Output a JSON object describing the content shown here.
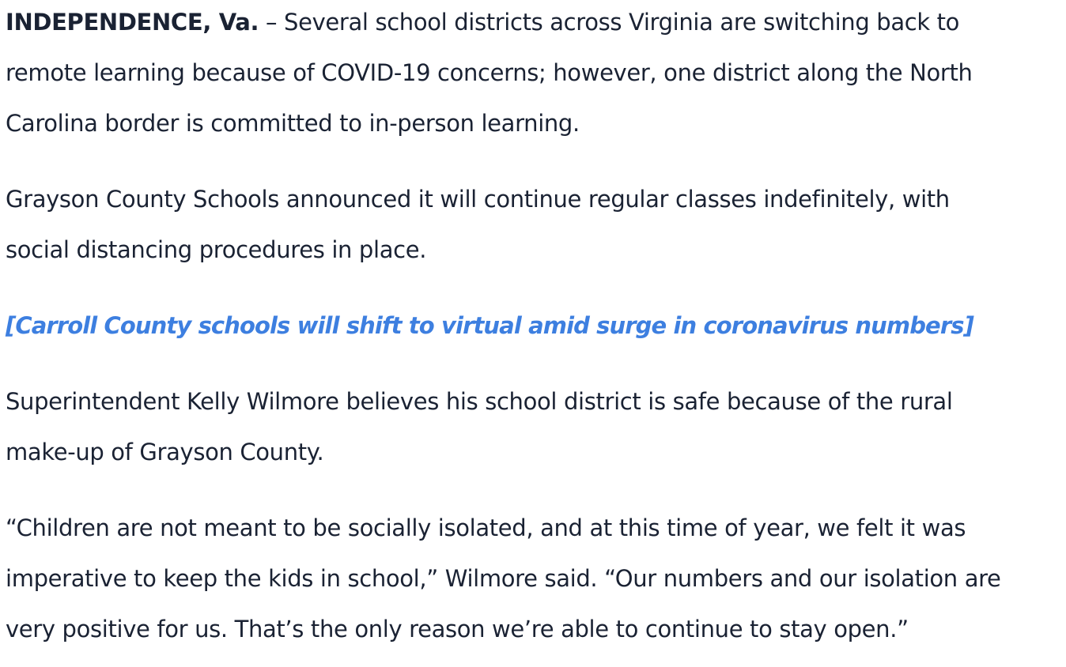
{
  "article": {
    "p1": {
      "dateline": "INDEPENDENCE, Va.",
      "line1_rest": " – Several school districts across Virginia are switching back to",
      "line2": "remote learning because of COVID-19 concerns; however, one district along the North",
      "line3": "Carolina border is committed to in-person learning."
    },
    "p2": {
      "line1": "Grayson County Schools announced it will continue regular classes indefinitely, with",
      "line2": "social distancing procedures in place."
    },
    "related_link": {
      "text": "[Carroll County schools will shift to virtual amid surge in coronavirus numbers]",
      "color": "#3d7fe0"
    },
    "p4": {
      "line1": "Superintendent Kelly Wilmore believes his school district is safe because of the rural",
      "line2": "make-up of Grayson County."
    },
    "p5": {
      "line1": "“Children are not meant to be socially isolated, and at this time of year, we felt it was",
      "line2": "imperative to keep the kids in school,” Wilmore said. “Our numbers and our isolation are",
      "line3": "very positive for us. That’s the only reason we’re able to continue to stay open.”"
    }
  }
}
